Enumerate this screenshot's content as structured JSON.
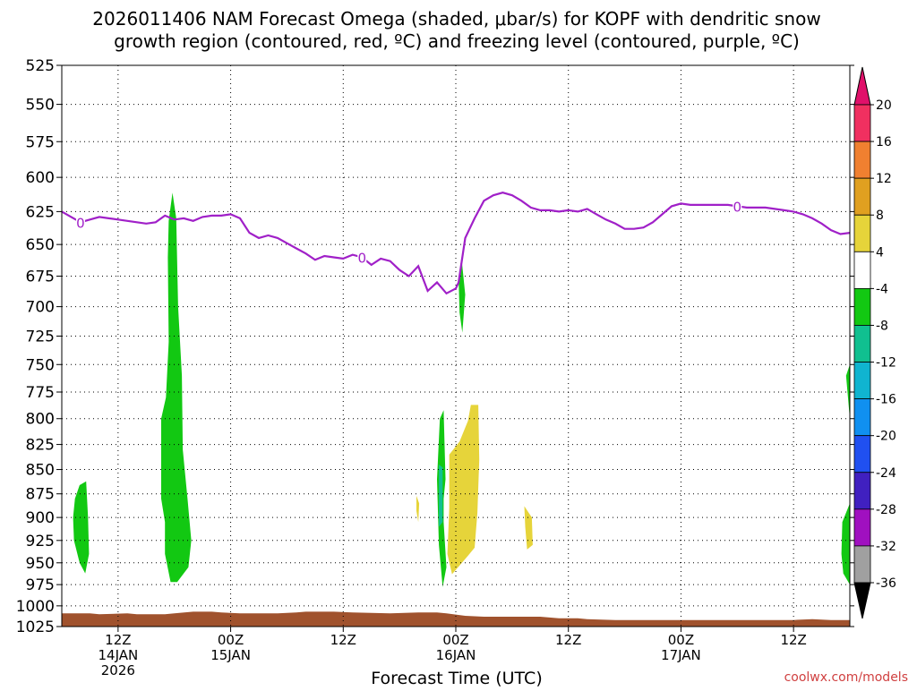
{
  "chart_data": {
    "type": "time-height",
    "title_lines": [
      "2026011406 NAM Forecast Omega (shaded, μbar/s) for KOPF with dendritic snow",
      "growth region (contoured, red, ºC) and freezing level (contoured, purple, ºC)"
    ],
    "xlabel": "Forecast Time (UTC)",
    "ylabel": "",
    "credit": "coolwx.com/models",
    "y_axis": {
      "unit": "mb",
      "reversed": true,
      "range": [
        525,
        1025
      ],
      "ticks": [
        "525",
        "550",
        "575",
        "600",
        "625",
        "650",
        "675",
        "700",
        "725",
        "750",
        "775",
        "800",
        "825",
        "850",
        "875",
        "900",
        "925",
        "950",
        "975",
        "1000",
        "1025"
      ]
    },
    "x_axis": {
      "range_hours": [
        6,
        90
      ],
      "ticks": [
        {
          "hour": 12,
          "lines": [
            "12Z",
            "14JAN",
            "2026"
          ]
        },
        {
          "hour": 24,
          "lines": [
            "00Z",
            "15JAN"
          ]
        },
        {
          "hour": 36,
          "lines": [
            "12Z"
          ]
        },
        {
          "hour": 48,
          "lines": [
            "00Z",
            "16JAN"
          ]
        },
        {
          "hour": 60,
          "lines": [
            "12Z"
          ]
        },
        {
          "hour": 72,
          "lines": [
            "00Z",
            "17JAN"
          ]
        },
        {
          "hour": 84,
          "lines": [
            "12Z"
          ]
        }
      ]
    },
    "colorbar": {
      "labels": [
        "20",
        "16",
        "12",
        "8",
        "4",
        "-4",
        "-8",
        "-12",
        "-16",
        "-20",
        "-24",
        "-28",
        "-32",
        "-36"
      ],
      "colors": [
        "#f03060",
        "#f08030",
        "#e0a020",
        "#e6d43a",
        "#ffffff",
        "#12c812",
        "#10c090",
        "#10b4d0",
        "#1090f0",
        "#2050f0",
        "#4020c0",
        "#a010c0",
        "#a0a0a0"
      ],
      "top_color": "#e0106a",
      "bottom_color": "#000000"
    },
    "freezing_level": {
      "color": "#a020c8",
      "contour_label": "0",
      "points": [
        [
          6,
          625
        ],
        [
          7,
          629
        ],
        [
          8,
          633
        ],
        [
          9,
          631
        ],
        [
          10,
          629
        ],
        [
          11,
          630
        ],
        [
          12,
          631
        ],
        [
          13,
          632
        ],
        [
          14,
          633
        ],
        [
          15,
          634
        ],
        [
          16,
          633
        ],
        [
          17,
          628
        ],
        [
          18,
          631
        ],
        [
          19,
          630
        ],
        [
          20,
          632
        ],
        [
          21,
          629
        ],
        [
          22,
          628
        ],
        [
          23,
          628
        ],
        [
          24,
          627
        ],
        [
          25,
          630
        ],
        [
          26,
          641
        ],
        [
          27,
          645
        ],
        [
          28,
          643
        ],
        [
          29,
          645
        ],
        [
          30,
          649
        ],
        [
          31,
          653
        ],
        [
          32,
          657
        ],
        [
          33,
          662
        ],
        [
          34,
          659
        ],
        [
          35,
          660
        ],
        [
          36,
          661
        ],
        [
          37,
          658
        ],
        [
          38,
          660
        ],
        [
          39,
          666
        ],
        [
          40,
          661
        ],
        [
          41,
          663
        ],
        [
          42,
          670
        ],
        [
          43,
          675
        ],
        [
          44,
          667
        ],
        [
          45,
          687
        ],
        [
          46,
          680
        ],
        [
          47,
          689
        ],
        [
          48,
          685
        ],
        [
          48.3,
          680
        ],
        [
          49,
          645
        ],
        [
          50,
          630
        ],
        [
          51,
          617
        ],
        [
          52,
          613
        ],
        [
          53,
          611
        ],
        [
          54,
          613
        ],
        [
          55,
          617
        ],
        [
          56,
          622
        ],
        [
          57,
          624
        ],
        [
          58,
          624
        ],
        [
          59,
          625
        ],
        [
          60,
          624
        ],
        [
          61,
          625
        ],
        [
          62,
          623
        ],
        [
          63,
          627
        ],
        [
          64,
          631
        ],
        [
          65,
          634
        ],
        [
          66,
          638
        ],
        [
          67,
          638
        ],
        [
          68,
          637
        ],
        [
          69,
          633
        ],
        [
          70,
          627
        ],
        [
          71,
          621
        ],
        [
          72,
          619
        ],
        [
          73,
          620
        ],
        [
          74,
          620
        ],
        [
          75,
          620
        ],
        [
          76,
          620
        ],
        [
          77,
          620
        ],
        [
          78,
          621
        ],
        [
          79,
          622
        ],
        [
          80,
          622
        ],
        [
          81,
          622
        ],
        [
          82,
          623
        ],
        [
          83,
          624
        ],
        [
          84,
          625
        ],
        [
          85,
          627
        ],
        [
          86,
          630
        ],
        [
          87,
          634
        ],
        [
          88,
          639
        ],
        [
          89,
          642
        ],
        [
          90,
          641
        ]
      ]
    },
    "omega_regions": [
      {
        "color": "#12c812",
        "points": [
          [
            7.4,
            880
          ],
          [
            7.9,
            866
          ],
          [
            8.6,
            862
          ],
          [
            8.8,
            900
          ],
          [
            8.9,
            940
          ],
          [
            8.5,
            962
          ],
          [
            7.9,
            950
          ],
          [
            7.3,
            925
          ],
          [
            7.2,
            900
          ]
        ]
      },
      {
        "color": "#12c812",
        "points": [
          [
            16.6,
            800
          ],
          [
            17.1,
            780
          ],
          [
            17.4,
            730
          ],
          [
            17.3,
            660
          ],
          [
            17.4,
            632
          ],
          [
            17.8,
            611
          ],
          [
            18.2,
            630
          ],
          [
            18.4,
            700
          ],
          [
            18.8,
            760
          ],
          [
            18.9,
            830
          ],
          [
            19.4,
            880
          ],
          [
            19.8,
            925
          ],
          [
            19.5,
            955
          ],
          [
            18.3,
            972
          ],
          [
            17.6,
            972
          ],
          [
            17.0,
            940
          ],
          [
            17.0,
            905
          ],
          [
            16.6,
            880
          ]
        ]
      },
      {
        "color": "#e6d43a",
        "points": [
          [
            43.8,
            877
          ],
          [
            44.1,
            885
          ],
          [
            44.0,
            905
          ],
          [
            43.8,
            893
          ]
        ]
      },
      {
        "color": "#12c812",
        "points": [
          [
            46.3,
            800
          ],
          [
            46.7,
            792
          ],
          [
            46.9,
            860
          ],
          [
            46.7,
            880
          ],
          [
            46.7,
            905
          ],
          [
            47.0,
            955
          ],
          [
            46.6,
            978
          ],
          [
            46.2,
            930
          ],
          [
            46.0,
            860
          ]
        ]
      },
      {
        "color": "#10c090",
        "points": [
          [
            46.2,
            845
          ],
          [
            46.6,
            848
          ],
          [
            46.6,
            905
          ],
          [
            46.2,
            910
          ]
        ]
      },
      {
        "color": "#e6d43a",
        "points": [
          [
            47.3,
            835
          ],
          [
            48.4,
            822
          ],
          [
            49.3,
            802
          ],
          [
            49.6,
            787
          ],
          [
            50.4,
            787
          ],
          [
            50.5,
            840
          ],
          [
            50.3,
            895
          ],
          [
            50.0,
            933
          ],
          [
            49.3,
            942
          ],
          [
            47.6,
            963
          ],
          [
            47.1,
            940
          ],
          [
            47.3,
            890
          ]
        ]
      },
      {
        "color": "#12c812",
        "points": [
          [
            48.3,
            677
          ],
          [
            48.6,
            660
          ],
          [
            49.0,
            690
          ],
          [
            48.7,
            722
          ],
          [
            48.4,
            705
          ]
        ]
      },
      {
        "color": "#e6d43a",
        "points": [
          [
            55.3,
            888
          ],
          [
            56.1,
            900
          ],
          [
            56.2,
            930
          ],
          [
            55.6,
            935
          ],
          [
            55.4,
            910
          ]
        ]
      },
      {
        "color": "#12c812",
        "points": [
          [
            89.6,
            760
          ],
          [
            90.0,
            750
          ],
          [
            90.0,
            800
          ]
        ]
      },
      {
        "color": "#12c812",
        "points": [
          [
            89.2,
            905
          ],
          [
            90.0,
            885
          ],
          [
            90.0,
            975
          ],
          [
            89.3,
            962
          ],
          [
            89.1,
            940
          ]
        ]
      }
    ],
    "terrain": {
      "color": "#a0522d",
      "top_points": [
        [
          6,
          1009
        ],
        [
          9,
          1009
        ],
        [
          10,
          1010
        ],
        [
          13,
          1009
        ],
        [
          14,
          1010
        ],
        [
          17,
          1010
        ],
        [
          18,
          1009
        ],
        [
          20,
          1007
        ],
        [
          22,
          1007
        ],
        [
          23,
          1008
        ],
        [
          25,
          1009
        ],
        [
          29,
          1009
        ],
        [
          31,
          1008
        ],
        [
          32,
          1007
        ],
        [
          35,
          1007
        ],
        [
          37,
          1008
        ],
        [
          41,
          1009
        ],
        [
          44,
          1008
        ],
        [
          46,
          1008
        ],
        [
          47,
          1009
        ],
        [
          49,
          1012
        ],
        [
          51,
          1013
        ],
        [
          55,
          1013
        ],
        [
          57,
          1013
        ],
        [
          59,
          1015
        ],
        [
          61,
          1015
        ],
        [
          62,
          1016
        ],
        [
          65,
          1017
        ],
        [
          70,
          1017
        ],
        [
          75,
          1017
        ],
        [
          80,
          1017
        ],
        [
          84,
          1017
        ],
        [
          86,
          1016
        ],
        [
          88,
          1017
        ],
        [
          90,
          1017
        ]
      ]
    }
  }
}
